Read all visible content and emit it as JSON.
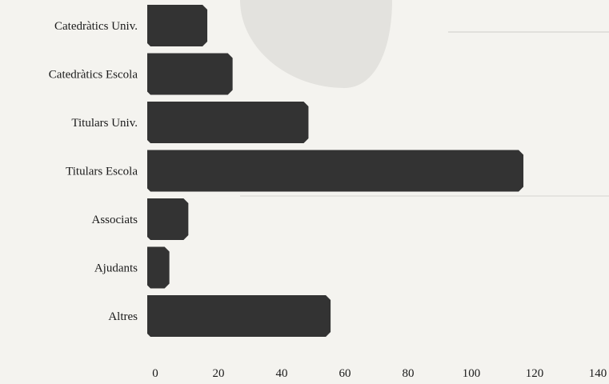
{
  "chart_data": {
    "type": "bar",
    "orientation": "horizontal",
    "categories": [
      "Catedràtics Univ.",
      "Catedràtics Escola",
      "Titulars Univ.",
      "Titulars Escola",
      "Associats",
      "Ajudants",
      "Altres"
    ],
    "values": [
      19,
      27,
      51,
      119,
      13,
      7,
      58
    ],
    "xlim": [
      0,
      140
    ],
    "xticks": [
      0,
      20,
      40,
      60,
      80,
      100,
      120,
      140
    ],
    "title": "",
    "xlabel": "",
    "ylabel": "",
    "grid": false,
    "bar_color": "#333333"
  }
}
